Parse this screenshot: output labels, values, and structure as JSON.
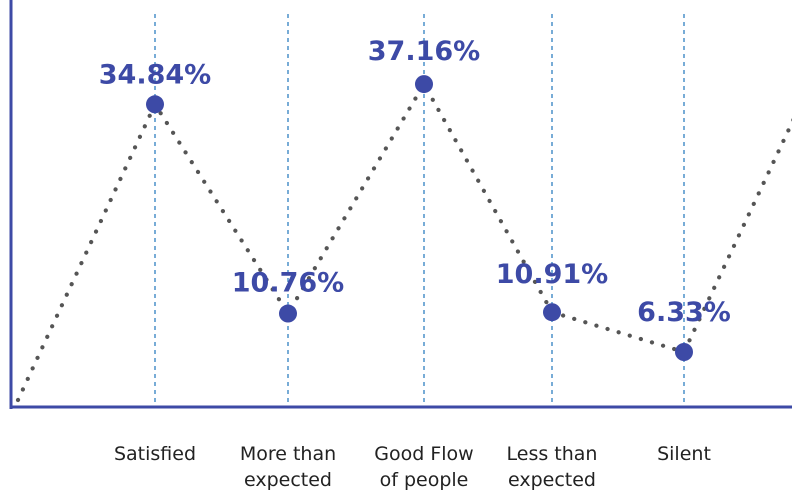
{
  "chart_data": {
    "type": "line",
    "categories": [
      [
        "Satisfied"
      ],
      [
        "More than",
        "expected"
      ],
      [
        "Good Flow",
        "of people"
      ],
      [
        "Less than",
        "expected"
      ],
      [
        "Silent"
      ]
    ],
    "values": [
      34.84,
      10.76,
      37.16,
      10.91,
      6.33
    ],
    "value_labels": [
      "34.84%",
      "10.76%",
      "37.16%",
      "10.91%",
      "6.33%"
    ],
    "ylim": [
      0,
      45
    ],
    "line_style": "dotted",
    "grid": "vertical dashed lines at each category",
    "colors": {
      "axis": "#3d4aa6",
      "marker": "#3d4aa6",
      "label": "#3d4aa6",
      "line": "#555555",
      "guide": "#2f7fc1",
      "category_text": "#222222"
    }
  }
}
